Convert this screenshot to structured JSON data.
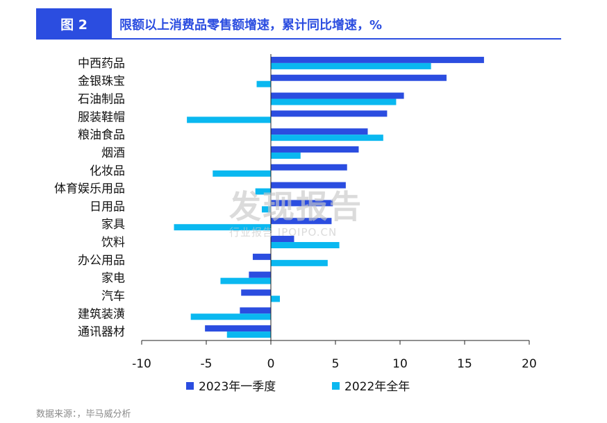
{
  "figure": {
    "label": "图 2",
    "title": "限额以上消费品零售额增速，累计同比增速，%"
  },
  "source": "数据来源：，毕马威分析",
  "watermark": {
    "main": "发现报告",
    "sub": "行业报告 IPOIPO.CN"
  },
  "colors": {
    "series_2023q1": "#2b4de0",
    "series_2022": "#0ab8f0",
    "accent": "#2b4de0"
  },
  "chart_data": {
    "type": "bar",
    "orientation": "horizontal",
    "title": "限额以上消费品零售额增速，累计同比增速，%",
    "xlabel": "",
    "ylabel": "",
    "xlim": [
      -10,
      20
    ],
    "xticks": [
      -10,
      -5,
      0,
      5,
      10,
      15,
      20
    ],
    "grid": false,
    "legend": "bottom",
    "categories": [
      "中西药品",
      "金银珠宝",
      "石油制品",
      "服装鞋帽",
      "粮油食品",
      "烟酒",
      "化妆品",
      "体育娱乐用品",
      "日用品",
      "家具",
      "饮料",
      "办公用品",
      "家电",
      "汽车",
      "建筑装潢",
      "通讯器材"
    ],
    "series": [
      {
        "name": "2023年一季度",
        "values": [
          16.5,
          13.6,
          10.3,
          9.0,
          7.5,
          6.8,
          5.9,
          5.8,
          4.8,
          4.7,
          1.8,
          -1.4,
          -1.7,
          -2.3,
          -2.4,
          -5.1
        ]
      },
      {
        "name": "2022年全年",
        "values": [
          12.4,
          -1.1,
          9.7,
          -6.5,
          8.7,
          2.3,
          -4.5,
          -1.2,
          -0.7,
          -7.5,
          5.3,
          4.4,
          -3.9,
          0.7,
          -6.2,
          -3.4
        ]
      }
    ]
  }
}
